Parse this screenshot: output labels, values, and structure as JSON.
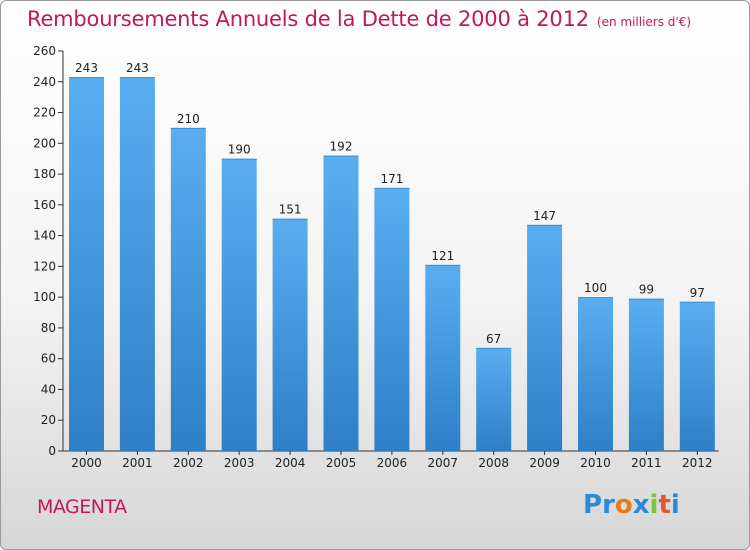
{
  "header": {
    "title": "Remboursements Annuels de la Dette de 2000 à 2012",
    "subtitle": "(en milliers d'€)"
  },
  "footer": {
    "commune": "MAGENTA",
    "logo_text": "Proxiti",
    "logo_colors": [
      "#2a8ad8",
      "#2a8ad8",
      "#e87b1e",
      "#2a8ad8",
      "#7cc242",
      "#e4572e",
      "#2a8ad8"
    ]
  },
  "colors": {
    "bar_top": "#5aaef0",
    "bar_bottom": "#2e7fc6",
    "title": "#c2185b",
    "axis": "#333333"
  },
  "chart_data": {
    "type": "bar",
    "title": "Remboursements Annuels de la Dette de 2000 à 2012",
    "subtitle": "(en milliers d'€)",
    "categories": [
      "2000",
      "2001",
      "2002",
      "2003",
      "2004",
      "2005",
      "2006",
      "2007",
      "2008",
      "2009",
      "2010",
      "2011",
      "2012"
    ],
    "values": [
      243,
      243,
      210,
      190,
      151,
      192,
      171,
      121,
      67,
      147,
      100,
      99,
      97
    ],
    "ylim": [
      0,
      260
    ],
    "yticks": [
      0,
      20,
      40,
      60,
      80,
      100,
      120,
      140,
      160,
      180,
      200,
      220,
      240,
      260
    ],
    "grid": false,
    "data_labels": true
  }
}
